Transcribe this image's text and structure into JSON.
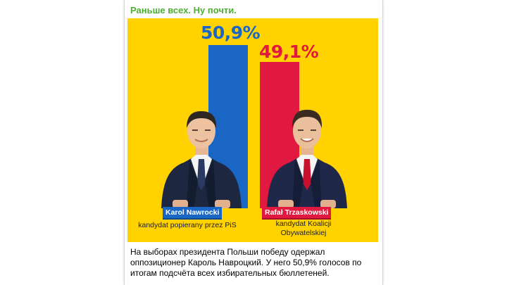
{
  "channel": {
    "name": "Раньше всех. Ну почти."
  },
  "poster": {
    "background_color": "#ffd200",
    "left": {
      "percent": "50,9%",
      "value": 50.9,
      "color": "#1a66c4",
      "name": "Karol Nawrocki",
      "description": "kandydat popierany przez PiS",
      "photo_icon": "man-in-navy-suit-icon"
    },
    "right": {
      "percent": "49,1%",
      "value": 49.1,
      "color": "#e1183f",
      "name": "Rafał Trzaskowski",
      "description": "kandydat Koalicji Obywatelskiej",
      "photo_icon": "man-in-navy-suit-icon"
    }
  },
  "post": {
    "text": "На выборах президента Польши победу одержал оппозиционер Кароль Навроцкий. У него 50,9% голосов по итогам подсчёта всех избирательных бюллетеней."
  }
}
